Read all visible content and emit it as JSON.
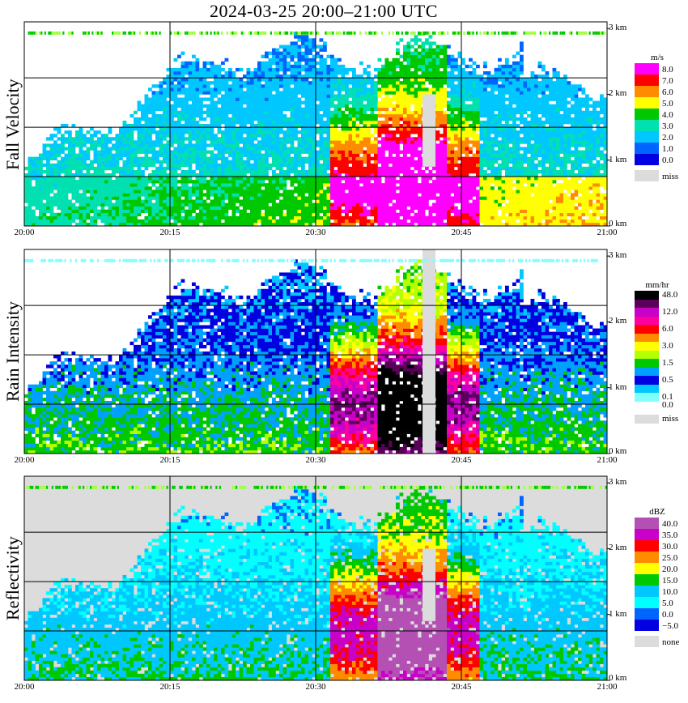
{
  "title": "2024-03-25   20:00–21:00 UTC",
  "colors": {
    "missing": "#dcdcdc",
    "grid": "#000000"
  },
  "chart_data": [
    {
      "type": "heatmap",
      "title": "Fall Velocity",
      "x_ticks": [
        "20:00",
        "20:15",
        "20:30",
        "20:45",
        "21:00"
      ],
      "x_range": [
        "20:00",
        "21:00"
      ],
      "height_ticks": [
        "3 km",
        "2 km",
        "1 km",
        "0 km"
      ],
      "height_range_km": [
        0,
        3.1
      ],
      "legend": {
        "unit": "m/s",
        "levels": [
          {
            "label": "8.0",
            "color": "#ff00ff"
          },
          {
            "label": "7.0",
            "color": "#ff0000"
          },
          {
            "label": "6.0",
            "color": "#ff8c00"
          },
          {
            "label": "5.0",
            "color": "#ffff00"
          },
          {
            "label": "4.0",
            "color": "#00c800"
          },
          {
            "label": "3.0",
            "color": "#00e0b0"
          },
          {
            "label": "2.0",
            "color": "#00c8ff"
          },
          {
            "label": "1.0",
            "color": "#0064ff"
          },
          {
            "label": "0.0",
            "color": "#0000e0"
          },
          {
            "label": "miss",
            "color": "#dcdcdc"
          }
        ]
      }
    },
    {
      "type": "heatmap",
      "title": "Rain Intensity",
      "x_ticks": [
        "20:00",
        "20:15",
        "20:30",
        "20:45",
        "21:00"
      ],
      "x_range": [
        "20:00",
        "21:00"
      ],
      "height_ticks": [
        "3 km",
        "2 km",
        "1 km",
        "0 km"
      ],
      "height_range_km": [
        0,
        3.1
      ],
      "legend": {
        "unit": "mm/hr",
        "levels": [
          {
            "label": "48.0",
            "color": "#000000"
          },
          {
            "label": "",
            "color": "#5a005a"
          },
          {
            "label": "12.0",
            "color": "#c800c8"
          },
          {
            "label": "",
            "color": "#ff00a0"
          },
          {
            "label": "6.0",
            "color": "#ff0000"
          },
          {
            "label": "",
            "color": "#ff8c00"
          },
          {
            "label": "3.0",
            "color": "#ffff00"
          },
          {
            "label": "",
            "color": "#b4ff00"
          },
          {
            "label": "1.5",
            "color": "#00c800"
          },
          {
            "label": "",
            "color": "#00a0ff"
          },
          {
            "label": "0.5",
            "color": "#0000e0"
          },
          {
            "label": "",
            "color": "#00c8ff"
          },
          {
            "label": "0.1",
            "color": "#80ffff"
          },
          {
            "label": "0.0",
            "color": "#ffffff"
          },
          {
            "label": "miss",
            "color": "#dcdcdc"
          }
        ]
      }
    },
    {
      "type": "heatmap",
      "title": "Reflectivity",
      "x_ticks": [
        "20:00",
        "20:15",
        "20:30",
        "20:45",
        "21:00"
      ],
      "x_range": [
        "20:00",
        "21:00"
      ],
      "height_ticks": [
        "3 km",
        "2 km",
        "1 km",
        "0 km"
      ],
      "height_range_km": [
        0,
        3.1
      ],
      "legend": {
        "unit": "dBZ",
        "levels": [
          {
            "label": "40.0",
            "color": "#b450b4"
          },
          {
            "label": "35.0",
            "color": "#c800c8"
          },
          {
            "label": "30.0",
            "color": "#ff0000"
          },
          {
            "label": "25.0",
            "color": "#ff8c00"
          },
          {
            "label": "20.0",
            "color": "#ffff00"
          },
          {
            "label": "15.0",
            "color": "#00c800"
          },
          {
            "label": "10.0",
            "color": "#00c8ff"
          },
          {
            "label": "5.0",
            "color": "#00ffff"
          },
          {
            "label": "0.0",
            "color": "#0064ff"
          },
          {
            "label": "−5.0",
            "color": "#0000e0"
          },
          {
            "label": "none",
            "color": "#dcdcdc"
          }
        ]
      }
    }
  ]
}
